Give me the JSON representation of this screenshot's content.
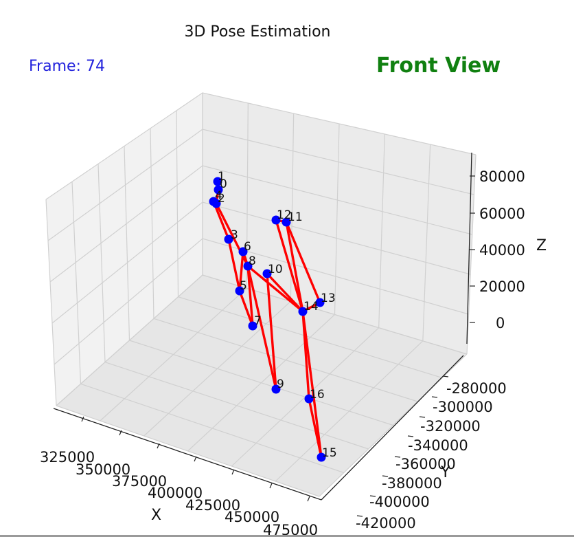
{
  "chart_data": {
    "type": "3d-scatter-skeleton",
    "title": "3D Pose Estimation",
    "frame_label": "Frame: 74",
    "view_label": "Front View",
    "xlabel": "X",
    "ylabel": "Y",
    "zlabel": "Z",
    "x_ticks": [
      "325000",
      "350000",
      "375000",
      "400000",
      "425000",
      "450000",
      "475000"
    ],
    "y_ticks": [
      "-280000",
      "-300000",
      "-320000",
      "-340000",
      "-360000",
      "-380000",
      "-400000",
      "-420000"
    ],
    "z_ticks": [
      "80000",
      "60000",
      "40000",
      "20000",
      "0"
    ],
    "joint_color": "#0000ff",
    "bone_color": "#ff0000",
    "joints": [
      {
        "id": "0",
        "label": "0"
      },
      {
        "id": "1",
        "label": "1"
      },
      {
        "id": "2",
        "label": "2"
      },
      {
        "id": "3",
        "label": "3"
      },
      {
        "id": "4",
        "label": "4"
      },
      {
        "id": "5",
        "label": "5"
      },
      {
        "id": "6",
        "label": "6"
      },
      {
        "id": "7",
        "label": "7"
      },
      {
        "id": "8",
        "label": "8"
      },
      {
        "id": "9",
        "label": "9"
      },
      {
        "id": "10",
        "label": "10"
      },
      {
        "id": "11",
        "label": "11"
      },
      {
        "id": "12",
        "label": "12"
      },
      {
        "id": "13",
        "label": "13"
      },
      {
        "id": "14",
        "label": "14"
      },
      {
        "id": "15",
        "label": "15"
      },
      {
        "id": "16",
        "label": "16"
      }
    ],
    "bones": [
      [
        "1",
        "0"
      ],
      [
        "0",
        "2"
      ],
      [
        "2",
        "4"
      ],
      [
        "4",
        "3"
      ],
      [
        "3",
        "5"
      ],
      [
        "5",
        "7"
      ],
      [
        "2",
        "8"
      ],
      [
        "8",
        "6"
      ],
      [
        "6",
        "5"
      ],
      [
        "8",
        "7"
      ],
      [
        "8",
        "9"
      ],
      [
        "9",
        "10"
      ],
      [
        "10",
        "14"
      ],
      [
        "8",
        "14"
      ],
      [
        "14",
        "15"
      ],
      [
        "15",
        "16"
      ],
      [
        "16",
        "14"
      ],
      [
        "12",
        "11"
      ],
      [
        "11",
        "13"
      ],
      [
        "12",
        "14"
      ],
      [
        "11",
        "14"
      ],
      [
        "13",
        "14"
      ]
    ]
  }
}
